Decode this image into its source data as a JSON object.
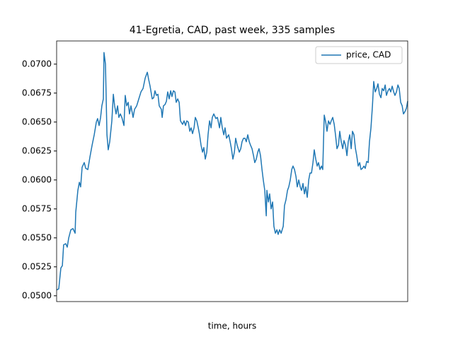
{
  "chart_data": {
    "type": "line",
    "title": "41-Egretia, CAD, past week, 335 samples",
    "xlabel": "time, hours",
    "xlim": [
      0,
      165.3
    ],
    "ylim": [
      0.0495,
      0.072
    ],
    "yticks": [
      {
        "value": 0.05,
        "label": "0.0500"
      },
      {
        "value": 0.0525,
        "label": "0.0525"
      },
      {
        "value": 0.055,
        "label": "0.0550"
      },
      {
        "value": 0.0575,
        "label": "0.0575"
      },
      {
        "value": 0.06,
        "label": "0.0600"
      },
      {
        "value": 0.0625,
        "label": "0.0625"
      },
      {
        "value": 0.065,
        "label": "0.0650"
      },
      {
        "value": 0.0675,
        "label": "0.0675"
      },
      {
        "value": 0.07,
        "label": "0.0700"
      }
    ],
    "legend": "upper right",
    "x": [
      0,
      1,
      2,
      2.7,
      3.3,
      4.3,
      5,
      5.7,
      6.7,
      7.7,
      8.7,
      9,
      10,
      10.7,
      11.3,
      12,
      13,
      13.7,
      14.7,
      15.7,
      16.7,
      17.7,
      18.7,
      19.3,
      20,
      20.7,
      21.3,
      22,
      22.3,
      23,
      23.7,
      24.3,
      25,
      26,
      26.7,
      27.3,
      28,
      28.7,
      29.3,
      30,
      30.7,
      31.7,
      32.3,
      33,
      33.7,
      34.3,
      35,
      36,
      36.7,
      37.7,
      38.7,
      39.7,
      40.7,
      41.7,
      42.7,
      43.3,
      44,
      45,
      45.7,
      46.3,
      47,
      47.7,
      48.3,
      49.3,
      49.7,
      50.3,
      51,
      51.7,
      52.3,
      53,
      53.7,
      54.3,
      55,
      55.7,
      56.3,
      57,
      57.7,
      58.3,
      59.3,
      60,
      60.7,
      61.3,
      62,
      62.7,
      63.3,
      64,
      64.7,
      65.3,
      66,
      66.7,
      67.3,
      68,
      68.7,
      69.3,
      70,
      70.7,
      71.3,
      72,
      72.7,
      73.3,
      74,
      75,
      75.7,
      76.7,
      77.3,
      78,
      78.7,
      79.3,
      80,
      81,
      81.7,
      82.3,
      83,
      83.7,
      84.3,
      85,
      86,
      86.7,
      87.3,
      88,
      88.7,
      89.3,
      90,
      90.7,
      91.3,
      92,
      92.7,
      93.3,
      94,
      94.7,
      95.3,
      96,
      96.7,
      97.3,
      98,
      98.7,
      99,
      99.7,
      100.3,
      101,
      101.7,
      102.3,
      103,
      103.7,
      104.3,
      105,
      105.7,
      106.7,
      107.3,
      108,
      108.7,
      109.3,
      110,
      110.7,
      111.3,
      112,
      112.7,
      113.3,
      114,
      114.7,
      115.3,
      116,
      116.7,
      117.3,
      118,
      118.7,
      119.3,
      120,
      120.7,
      121.3,
      122,
      122.7,
      123.3,
      124,
      124.7,
      125.3,
      126,
      126.7,
      127.3,
      128,
      128.7,
      129.3,
      130,
      130.7,
      131.3,
      132,
      132.7,
      133.3,
      134,
      134.7,
      135.3,
      136,
      136.7,
      137.3,
      138,
      138.7,
      139.3,
      140,
      140.7,
      141.3,
      142,
      142.7,
      143.3,
      144,
      144.7,
      145.3,
      146,
      146.7,
      147.3,
      148,
      148.7,
      149.3,
      150,
      150.7,
      151.3,
      152,
      152.7,
      153.3,
      154,
      154.7,
      155.3,
      156,
      156.7,
      157.3,
      158,
      158.7,
      159.3,
      160,
      160.7,
      161.3,
      162,
      162.7,
      163.3,
      164,
      164.7,
      165.3
    ],
    "series": [
      {
        "name": "price, CAD",
        "color": "#1f77b4",
        "values": [
          0.0505,
          0.0506,
          0.0524,
          0.0526,
          0.0544,
          0.0545,
          0.0542,
          0.055,
          0.0557,
          0.0558,
          0.0554,
          0.0572,
          0.0591,
          0.0598,
          0.0594,
          0.0611,
          0.0615,
          0.061,
          0.0609,
          0.062,
          0.063,
          0.0639,
          0.065,
          0.0653,
          0.0647,
          0.0654,
          0.0664,
          0.067,
          0.071,
          0.07,
          0.0639,
          0.0626,
          0.0633,
          0.0651,
          0.0674,
          0.0664,
          0.0657,
          0.0664,
          0.0654,
          0.0657,
          0.0654,
          0.0647,
          0.0673,
          0.0664,
          0.0667,
          0.0657,
          0.0664,
          0.0654,
          0.0661,
          0.0664,
          0.067,
          0.0676,
          0.0679,
          0.0688,
          0.0693,
          0.0687,
          0.0681,
          0.067,
          0.0671,
          0.0677,
          0.0673,
          0.0674,
          0.0664,
          0.0661,
          0.0654,
          0.0664,
          0.0665,
          0.0668,
          0.0676,
          0.067,
          0.0677,
          0.0672,
          0.0677,
          0.0676,
          0.0667,
          0.067,
          0.0667,
          0.0651,
          0.0648,
          0.0651,
          0.0647,
          0.0651,
          0.065,
          0.0642,
          0.0645,
          0.064,
          0.0645,
          0.0654,
          0.0651,
          0.0645,
          0.0639,
          0.063,
          0.0624,
          0.0628,
          0.0618,
          0.0624,
          0.0639,
          0.0651,
          0.0645,
          0.0654,
          0.0657,
          0.0653,
          0.0654,
          0.0645,
          0.0654,
          0.0645,
          0.0639,
          0.0645,
          0.0636,
          0.0639,
          0.0633,
          0.0627,
          0.0618,
          0.0624,
          0.0636,
          0.063,
          0.0624,
          0.0627,
          0.0633,
          0.0636,
          0.0636,
          0.0633,
          0.0639,
          0.0633,
          0.063,
          0.0627,
          0.0621,
          0.0615,
          0.0618,
          0.0624,
          0.0627,
          0.0621,
          0.0609,
          0.06,
          0.0591,
          0.0569,
          0.0591,
          0.0581,
          0.0588,
          0.0575,
          0.0581,
          0.056,
          0.0554,
          0.0557,
          0.0553,
          0.0557,
          0.0554,
          0.056,
          0.0578,
          0.0583,
          0.0591,
          0.0594,
          0.06,
          0.0609,
          0.0612,
          0.0609,
          0.0603,
          0.0594,
          0.06,
          0.0594,
          0.0591,
          0.0597,
          0.0588,
          0.0594,
          0.0585,
          0.06,
          0.0606,
          0.0606,
          0.0615,
          0.0626,
          0.0618,
          0.0612,
          0.0615,
          0.0609,
          0.0612,
          0.0609,
          0.0656,
          0.065,
          0.0642,
          0.0651,
          0.0648,
          0.0651,
          0.0654,
          0.0648,
          0.0639,
          0.0627,
          0.063,
          0.0642,
          0.0633,
          0.0627,
          0.0634,
          0.063,
          0.0621,
          0.0633,
          0.0639,
          0.0627,
          0.0642,
          0.0639,
          0.0627,
          0.0621,
          0.0612,
          0.0615,
          0.0609,
          0.061,
          0.0612,
          0.061,
          0.0616,
          0.0615,
          0.0633,
          0.0645,
          0.0664,
          0.0685,
          0.0676,
          0.0679,
          0.0683,
          0.0674,
          0.0671,
          0.0679,
          0.0677,
          0.0682,
          0.0673,
          0.0677,
          0.0679,
          0.0676,
          0.0681,
          0.0676,
          0.0673,
          0.0676,
          0.0682,
          0.0679,
          0.0667,
          0.0664,
          0.0657,
          0.0659,
          0.0662,
          0.0668
        ]
      }
    ]
  }
}
